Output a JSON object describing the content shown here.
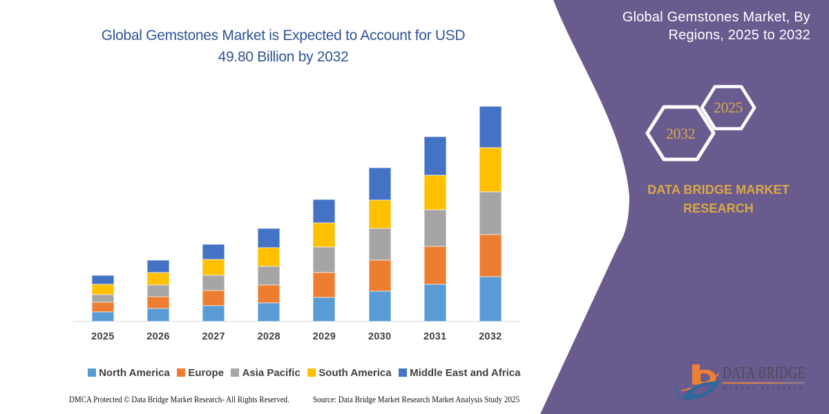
{
  "chart_data": {
    "type": "bar",
    "stacked": true,
    "title": "Global Gemstones Market is Expected to Account for USD 49.80 Billion by 2032",
    "title_lines": [
      "Global Gemstones Market is Expected to Account for USD",
      "49.80 Billion by 2032"
    ],
    "unit": "USD Billion",
    "categories": [
      "2025",
      "2026",
      "2027",
      "2028",
      "2029",
      "2030",
      "2031",
      "2032"
    ],
    "series": [
      {
        "name": "North America",
        "color": "#5B9BD5",
        "border": "#9DC3E6",
        "values": [
          2.22,
          2.97,
          3.66,
          4.25,
          5.53,
          6.99,
          8.6,
          10.41
        ]
      },
      {
        "name": "Europe",
        "color": "#ED7D31",
        "border": "#F4B183",
        "values": [
          2.21,
          2.78,
          3.5,
          4.27,
          5.79,
          7.19,
          8.87,
          9.78
        ]
      },
      {
        "name": "Asia Pacific",
        "color": "#A5A5A5",
        "border": "#C9C9C9",
        "values": [
          1.84,
          2.75,
          3.61,
          4.27,
          6.0,
          7.47,
          8.35,
          9.88
        ]
      },
      {
        "name": "South America",
        "color": "#FFC000",
        "border": "#FFD966",
        "values": [
          2.32,
          2.88,
          3.55,
          4.25,
          5.53,
          6.46,
          8.15,
          10.23
        ]
      },
      {
        "name": "Middle East and Africa",
        "color": "#4472C4",
        "border": "#8FAADC",
        "values": [
          2.11,
          2.78,
          3.58,
          4.48,
          5.47,
          7.53,
          8.87,
          9.51
        ]
      }
    ],
    "totals": [
      10.7,
      14.16,
      17.9,
      21.52,
      28.32,
      35.64,
      42.84,
      49.81
    ],
    "ylim": [
      0,
      53
    ],
    "grid": false,
    "legend_position": "bottom"
  },
  "right_panel": {
    "panel_color": "#6A5B8F",
    "title_line1": "Global Gemstones Market, By",
    "title_line2": "Regions, 2025 to 2032",
    "hexagon_small_label": "2025",
    "hexagon_large_label": "2032",
    "brand_line1": "DATA BRIDGE MARKET",
    "brand_line2": "RESEARCH",
    "gold_color": "#D9A845"
  },
  "logo": {
    "icon": "data-bridge-b-icon",
    "wordmark_line1": "DATA BRIDGE",
    "wordmark_line2": "MARKET RESEARCH"
  },
  "footer": {
    "left": "DMCA Protected © Data Bridge Market Research-  All Rights Reserved.",
    "source": "Source: Data Bridge Market Research  Market Analysis Study 2025"
  }
}
